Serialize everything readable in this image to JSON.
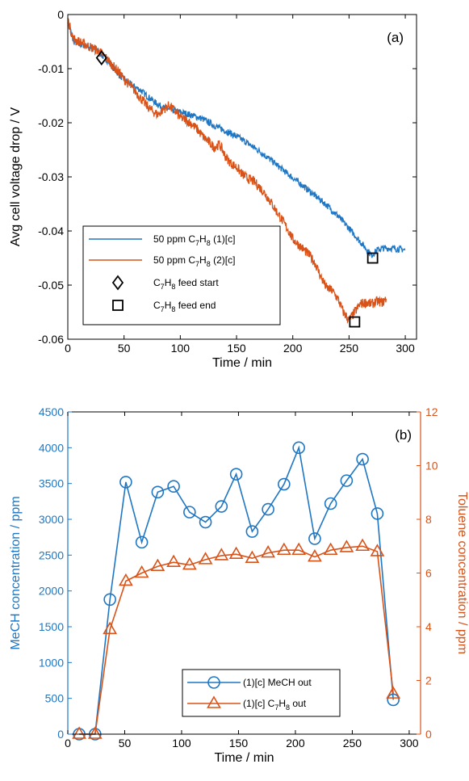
{
  "colors": {
    "blue": "#1f77c4",
    "orange": "#d95319",
    "black": "#000000"
  },
  "chart_data": [
    {
      "type": "line",
      "panel_label": "(a)",
      "xlabel": "Time / min",
      "ylabel": "Avg cell voltage drop / V",
      "xlim": [
        0,
        310
      ],
      "ylim": [
        -0.06,
        0
      ],
      "xticks": [
        0,
        50,
        100,
        150,
        200,
        250,
        300
      ],
      "yticks": [
        0,
        -0.01,
        -0.02,
        -0.03,
        -0.04,
        -0.05,
        -0.06
      ],
      "ytick_labels": [
        "0",
        "-0.01",
        "-0.02",
        "-0.03",
        "-0.04",
        "-0.05",
        "-0.06"
      ],
      "legend_position": "bottom-left",
      "series": [
        {
          "name_parts": [
            "50 ppm C",
            "7",
            "H",
            "8",
            " (1)[c]"
          ],
          "color_key": "blue",
          "x": [
            0,
            5,
            10,
            15,
            20,
            25,
            30,
            35,
            40,
            45,
            50,
            55,
            60,
            65,
            70,
            75,
            80,
            85,
            90,
            95,
            100,
            110,
            120,
            130,
            140,
            150,
            160,
            170,
            180,
            190,
            200,
            210,
            220,
            230,
            240,
            250,
            260,
            265,
            270,
            275,
            280,
            290,
            300
          ],
          "y": [
            -0.001,
            -0.005,
            -0.0055,
            -0.0057,
            -0.006,
            -0.0062,
            -0.0075,
            -0.0085,
            -0.0097,
            -0.011,
            -0.012,
            -0.0128,
            -0.0134,
            -0.014,
            -0.015,
            -0.0158,
            -0.0166,
            -0.0172,
            -0.0176,
            -0.0178,
            -0.018,
            -0.0186,
            -0.0193,
            -0.0205,
            -0.0215,
            -0.0225,
            -0.0238,
            -0.0252,
            -0.0268,
            -0.0285,
            -0.0302,
            -0.0318,
            -0.0335,
            -0.0352,
            -0.0372,
            -0.0395,
            -0.042,
            -0.0432,
            -0.0445,
            -0.0435,
            -0.0432,
            -0.0432,
            -0.0435
          ],
          "noise": 0.0006
        },
        {
          "name_parts": [
            "50 ppm C",
            "7",
            "H",
            "8",
            " (2)[c]"
          ],
          "color_key": "orange",
          "x": [
            0,
            5,
            10,
            15,
            20,
            25,
            30,
            35,
            40,
            45,
            50,
            55,
            60,
            65,
            70,
            75,
            80,
            85,
            90,
            95,
            100,
            105,
            110,
            115,
            120,
            125,
            130,
            135,
            140,
            145,
            150,
            155,
            160,
            165,
            170,
            175,
            180,
            185,
            190,
            195,
            200,
            205,
            210,
            215,
            220,
            225,
            230,
            235,
            240,
            245,
            250,
            255,
            260,
            265,
            270,
            275,
            280,
            283
          ],
          "y": [
            -0.001,
            -0.0045,
            -0.005,
            -0.0055,
            -0.006,
            -0.0065,
            -0.0072,
            -0.0082,
            -0.0095,
            -0.0105,
            -0.012,
            -0.013,
            -0.0142,
            -0.0155,
            -0.0168,
            -0.0178,
            -0.0185,
            -0.0175,
            -0.0168,
            -0.0178,
            -0.019,
            -0.0195,
            -0.0202,
            -0.0212,
            -0.0225,
            -0.0235,
            -0.0245,
            -0.024,
            -0.0262,
            -0.0275,
            -0.0282,
            -0.0295,
            -0.0303,
            -0.0308,
            -0.0318,
            -0.033,
            -0.0345,
            -0.0362,
            -0.0378,
            -0.0395,
            -0.0415,
            -0.0425,
            -0.0435,
            -0.0445,
            -0.046,
            -0.0485,
            -0.0505,
            -0.051,
            -0.0525,
            -0.055,
            -0.0565,
            -0.055,
            -0.0535,
            -0.0532,
            -0.0535,
            -0.053,
            -0.0532,
            -0.0525
          ],
          "noise": 0.0009
        }
      ],
      "markers": [
        {
          "name_parts": [
            "C",
            "7",
            "H",
            "8",
            " feed start"
          ],
          "symbol": "diamond",
          "points": [
            [
              30,
              -0.008
            ]
          ]
        },
        {
          "name_parts": [
            "C",
            "7",
            "H",
            "8",
            " feed end"
          ],
          "symbol": "square",
          "points": [
            [
              271,
              -0.045
            ],
            [
              255,
              -0.0568
            ]
          ]
        }
      ]
    },
    {
      "type": "line",
      "panel_label": "(b)",
      "xlabel": "Time / min",
      "ylabel_left": "MeCH concentration / ppm",
      "ylabel_right": "Toluene concentration / ppm",
      "xlim": [
        0,
        310
      ],
      "ylim_left": [
        0,
        4500
      ],
      "ylim_right": [
        0,
        12
      ],
      "xticks": [
        0,
        50,
        100,
        150,
        200,
        250,
        300
      ],
      "yticks_left": [
        0,
        500,
        1000,
        1500,
        2000,
        2500,
        3000,
        3500,
        4000,
        4500
      ],
      "yticks_right": [
        0,
        2,
        4,
        6,
        8,
        10,
        12
      ],
      "legend_position": "bottom-center",
      "series": [
        {
          "name_parts": [
            "(1)[c] MeCH out"
          ],
          "color_key": "blue",
          "axis": "left",
          "marker": "circle",
          "x": [
            10,
            24,
            37,
            51,
            65,
            79,
            93,
            107,
            121,
            135,
            148,
            162,
            176,
            190,
            203,
            217,
            231,
            245,
            259,
            272,
            286
          ],
          "y": [
            0,
            0,
            1880,
            3520,
            2680,
            3380,
            3460,
            3100,
            2960,
            3180,
            3630,
            2830,
            3140,
            3490,
            4000,
            2730,
            3220,
            3540,
            3840,
            3080,
            480
          ]
        },
        {
          "name_parts": [
            "(1)[c] C",
            "7",
            "H",
            "8",
            " out"
          ],
          "color_key": "orange",
          "axis": "right",
          "marker": "triangle",
          "x": [
            10,
            24,
            37,
            51,
            65,
            79,
            93,
            107,
            121,
            135,
            148,
            162,
            176,
            190,
            203,
            217,
            231,
            245,
            259,
            272,
            286
          ],
          "y": [
            0,
            0,
            3.9,
            5.7,
            6.0,
            6.25,
            6.4,
            6.3,
            6.5,
            6.65,
            6.7,
            6.55,
            6.75,
            6.85,
            6.85,
            6.6,
            6.85,
            6.95,
            7.0,
            6.8,
            1.5
          ]
        }
      ]
    }
  ]
}
